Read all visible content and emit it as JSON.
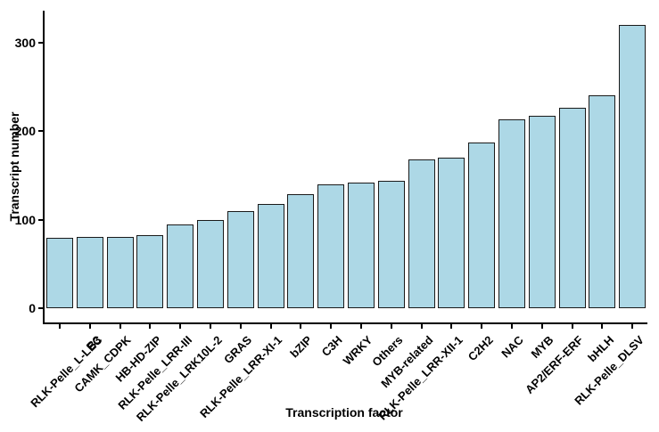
{
  "chart_data": {
    "type": "bar",
    "title": "",
    "xlabel": "Transcription factor",
    "ylabel": "Transcript number",
    "categories": [
      "RLK-Pelle_L-LEC",
      "B3",
      "CAMK_CDPK",
      "HB-HD-ZIP",
      "RLK-Pelle_LRR-III",
      "RLK-Pelle_LRK10L-2",
      "GRAS",
      "RLK-Pelle_LRR-XI-1",
      "bZIP",
      "C3H",
      "WRKY",
      "Others",
      "MYB-related",
      "RLK-Pelle_LRR-XII-1",
      "C2H2",
      "NAC",
      "MYB",
      "AP2/ERF-ERF",
      "bHLH",
      "RLK-Pelle_DLSV"
    ],
    "values": [
      80,
      81,
      81,
      83,
      95,
      100,
      110,
      118,
      129,
      140,
      142,
      144,
      168,
      170,
      187,
      213,
      217,
      226,
      240,
      320
    ],
    "yticks": [
      0,
      100,
      200,
      300
    ],
    "ylim": [
      0,
      336
    ],
    "y_expansion_units": 16,
    "grid": "off",
    "legend": "none",
    "bar_fill": "#ADD8E6",
    "bar_stroke": "#1A1A1A",
    "axis_color": "#000000",
    "text_color": "#000000"
  }
}
